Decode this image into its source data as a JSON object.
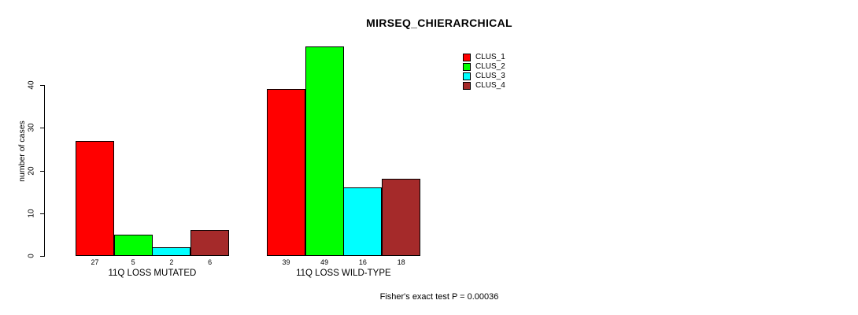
{
  "chart_data": {
    "type": "bar",
    "title": "MIRSEQ_CHIERARCHICAL",
    "ylabel": "number of cases",
    "xlabel": "",
    "categories": [
      "11Q LOSS MUTATED",
      "11Q LOSS WILD-TYPE"
    ],
    "series": [
      {
        "name": "CLUS_1",
        "color": "#FF0000",
        "values": [
          27,
          39
        ]
      },
      {
        "name": "CLUS_2",
        "color": "#00FF00",
        "values": [
          5,
          49
        ]
      },
      {
        "name": "CLUS_3",
        "color": "#00FFFF",
        "values": [
          2,
          16
        ]
      },
      {
        "name": "CLUS_4",
        "color": "#A52A2A",
        "values": [
          6,
          18
        ]
      }
    ],
    "yticks": [
      0,
      10,
      20,
      30,
      40
    ],
    "ylim": [
      0,
      49
    ],
    "grid": false,
    "bar_value_labels": true,
    "legend_position": "top-right",
    "annotation": "Fisher's exact test P = 0.00036"
  },
  "colors": {
    "background": "#FFFFFF",
    "axis": "#000000",
    "text": "#000000"
  }
}
